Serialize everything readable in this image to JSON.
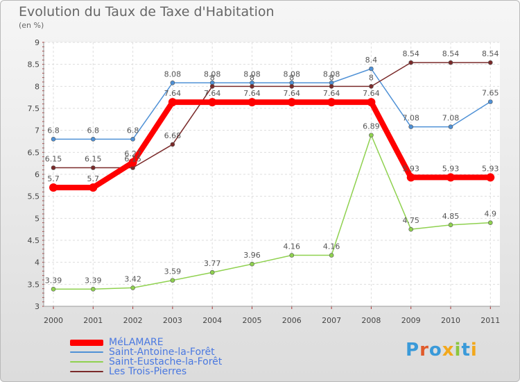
{
  "header": {
    "title": "Evolution du Taux de Taxe d'Habitation",
    "unit": "(en %)"
  },
  "brand": {
    "text": "Proxiti",
    "letter_colors": [
      "#3a9ad9",
      "#e05a2a",
      "#3a9ad9",
      "#f2a81c",
      "#8cc63f",
      "#3a9ad9",
      "#f2a81c"
    ]
  },
  "chart_data": {
    "type": "line",
    "x": [
      "2000",
      "2001",
      "2002",
      "2003",
      "2004",
      "2005",
      "2006",
      "2007",
      "2008",
      "2009",
      "2010",
      "2011"
    ],
    "ylim": [
      3,
      9
    ],
    "yticks": [
      "3",
      "3.5",
      "4",
      "4.5",
      "5",
      "5.5",
      "6",
      "6.5",
      "7",
      "7.5",
      "8",
      "8.5",
      "9"
    ],
    "grid": true,
    "legend_position": "bottom-left",
    "series": [
      {
        "name": "MéLAMARE",
        "color": "#ff0000",
        "values": [
          5.7,
          5.7,
          6.27,
          7.64,
          7.64,
          7.64,
          7.64,
          7.64,
          7.64,
          5.93,
          5.93,
          5.93
        ],
        "labels": [
          "5.7",
          "5.7",
          "6.27",
          "7.64",
          "7.64",
          "7.64",
          "7.64",
          "7.64",
          "7.64",
          "5.93",
          "5.93",
          "5.93"
        ]
      },
      {
        "name": "Saint-Antoine-la-Forêt",
        "color": "#4f91d6",
        "values": [
          6.8,
          6.8,
          6.8,
          8.08,
          8.08,
          8.08,
          8.08,
          8.08,
          8.4,
          7.08,
          7.08,
          7.65
        ],
        "labels": [
          "6.8",
          "6.8",
          "6.8",
          "8.08",
          "8.08",
          "8.08",
          "8.08",
          "8.08",
          "8.4",
          "7.08",
          "7.08",
          "7.65"
        ]
      },
      {
        "name": "Saint-Eustache-la-Forêt",
        "color": "#8fd14f",
        "values": [
          3.39,
          3.39,
          3.42,
          3.59,
          3.77,
          3.96,
          4.16,
          4.16,
          6.89,
          4.75,
          4.85,
          4.9
        ],
        "labels": [
          "3.39",
          "3.39",
          "3.42",
          "3.59",
          "3.77",
          "3.96",
          "4.16",
          "4.16",
          "6.89",
          "4.75",
          "4.85",
          "4.9"
        ]
      },
      {
        "name": "Les Trois-Pierres",
        "color": "#7a2a2a",
        "values": [
          6.15,
          6.15,
          6.15,
          6.68,
          8,
          8,
          8,
          8,
          8,
          8.54,
          8.54,
          8.54
        ],
        "labels": [
          "6.15",
          "6.15",
          "6.15",
          "6.68",
          "8",
          "8",
          "8",
          "8",
          "8",
          "8.54",
          "8.54",
          "8.54"
        ]
      }
    ]
  }
}
